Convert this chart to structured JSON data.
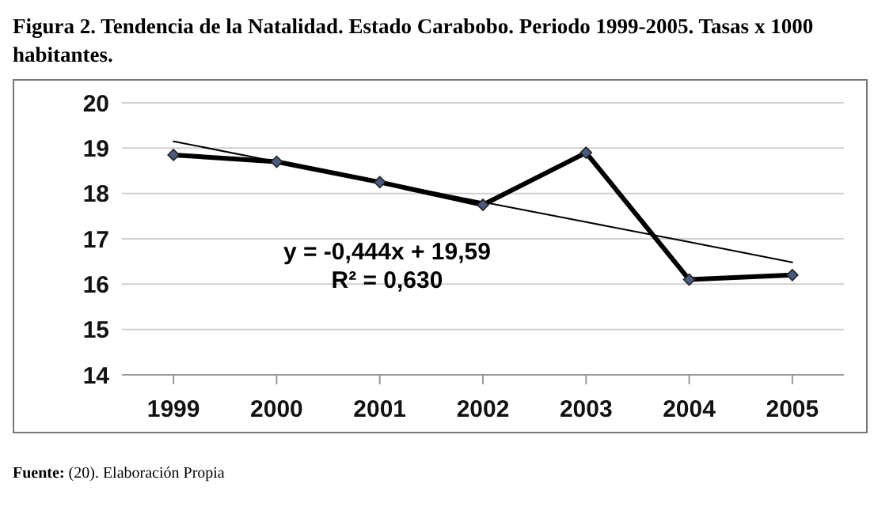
{
  "chart_data": {
    "type": "line",
    "title": "Figura 2. Tendencia de la Natalidad. Estado Carabobo. Periodo 1999-2005. Tasas x 1000 habitantes.",
    "categories": [
      "1999",
      "2000",
      "2001",
      "2002",
      "2003",
      "2004",
      "2005"
    ],
    "series": [
      {
        "color": "#000000",
        "values": [
          18.85,
          18.7,
          18.25,
          17.75,
          18.9,
          16.1,
          16.2
        ],
        "marker": "diamond"
      },
      {
        "color": "#000000",
        "values": [
          19.15,
          18.7,
          18.26,
          17.81,
          17.37,
          16.93,
          16.48
        ],
        "marker": "none"
      }
    ],
    "ylim": [
      14,
      20
    ],
    "yticks": [
      14,
      15,
      16,
      17,
      18,
      19,
      20
    ],
    "grid": "y",
    "annotations": [
      "y = -0,444x + 19,59",
      "R² = 0,630",
      "Fuente: (20). Elaboración Propia"
    ]
  }
}
